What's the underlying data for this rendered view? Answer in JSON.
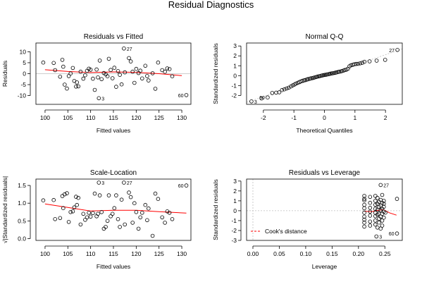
{
  "figure": {
    "title": "Residual Diagnostics"
  },
  "colors": {
    "points": "#000000",
    "smooth": "#ff0000",
    "reference": "#bebebe",
    "frame": "#000000"
  },
  "chart_data": [
    {
      "type": "scatter",
      "title": "Residuals vs Fitted",
      "xlabel": "Fitted values",
      "ylabel": "Residuals",
      "xlim": [
        98,
        132
      ],
      "ylim": [
        -14,
        14
      ],
      "xticks": [
        100,
        105,
        110,
        115,
        120,
        125,
        130
      ],
      "yticks": [
        -10,
        -5,
        0,
        5,
        10
      ],
      "hline": 0,
      "smooth": [
        [
          100,
          1.8
        ],
        [
          105,
          1.0
        ],
        [
          110,
          0.5
        ],
        [
          115,
          0.8
        ],
        [
          120,
          0.6
        ],
        [
          125,
          0.0
        ],
        [
          130,
          -0.9
        ]
      ],
      "annotations": [
        {
          "label": "27",
          "x": 117.3,
          "y": 11.5
        },
        {
          "label": "3",
          "x": 111.8,
          "y": -11.2
        },
        {
          "label": "60",
          "x": 131.0,
          "y": -9.8
        }
      ],
      "points": [
        [
          99.6,
          5.1
        ],
        [
          101.9,
          4.9
        ],
        [
          102.2,
          1.6
        ],
        [
          103.3,
          -1.4
        ],
        [
          103.8,
          6.3
        ],
        [
          104.0,
          3.2
        ],
        [
          104.3,
          -5.0
        ],
        [
          104.8,
          -6.8
        ],
        [
          105.2,
          -1.1
        ],
        [
          105.6,
          0.1
        ],
        [
          106.1,
          2.6
        ],
        [
          106.4,
          -3.3
        ],
        [
          106.8,
          -5.9
        ],
        [
          107.0,
          -4.0
        ],
        [
          107.3,
          -5.8
        ],
        [
          107.8,
          0.9
        ],
        [
          108.4,
          -2.3
        ],
        [
          108.8,
          -0.7
        ],
        [
          109.2,
          1.3
        ],
        [
          109.6,
          2.3
        ],
        [
          110.0,
          1.8
        ],
        [
          110.5,
          -2.3
        ],
        [
          110.9,
          -7.4
        ],
        [
          111.3,
          1.9
        ],
        [
          111.6,
          -1.7
        ],
        [
          112.0,
          6.0
        ],
        [
          112.4,
          -2.5
        ],
        [
          112.9,
          0.3
        ],
        [
          113.3,
          -0.3
        ],
        [
          113.7,
          -1.2
        ],
        [
          114.0,
          6.8
        ],
        [
          114.4,
          1.7
        ],
        [
          114.8,
          -2.1
        ],
        [
          115.2,
          2.7
        ],
        [
          115.6,
          -6.0
        ],
        [
          116.0,
          1.2
        ],
        [
          116.4,
          -0.5
        ],
        [
          116.8,
          -4.9
        ],
        [
          117.3,
          11.5
        ],
        [
          117.5,
          0.6
        ],
        [
          118.4,
          7.1
        ],
        [
          118.8,
          5.6
        ],
        [
          119.2,
          0.9
        ],
        [
          119.6,
          -4.2
        ],
        [
          120.0,
          2.2
        ],
        [
          120.5,
          0.3
        ],
        [
          120.9,
          1.4
        ],
        [
          121.3,
          -2.2
        ],
        [
          122.0,
          3.6
        ],
        [
          122.4,
          -1.1
        ],
        [
          122.7,
          -3.1
        ],
        [
          123.6,
          0.2
        ],
        [
          124.2,
          -6.9
        ],
        [
          124.8,
          5.1
        ],
        [
          125.7,
          1.6
        ],
        [
          126.3,
          0.9
        ],
        [
          126.8,
          2.4
        ],
        [
          127.3,
          2.1
        ],
        [
          127.9,
          -1.2
        ],
        [
          111.8,
          -11.2
        ],
        [
          131.0,
          -9.8
        ]
      ]
    },
    {
      "type": "scatter",
      "title": "Normal Q-Q",
      "xlabel": "Theoretical Quantiles",
      "ylabel": "Standardized residuals",
      "xlim": [
        -2.55,
        2.55
      ],
      "ylim": [
        -2.9,
        3.3
      ],
      "xticks": [
        -2,
        -1,
        0,
        1,
        2
      ],
      "yticks": [
        -2,
        -1,
        0,
        1,
        2,
        3
      ],
      "reference_line": [
        [
          -2.55,
          -2.7
        ],
        [
          2.55,
          2.7
        ]
      ],
      "annotations": [
        {
          "label": "27",
          "x": 2.39,
          "y": 2.6
        },
        {
          "label": "3",
          "x": -2.39,
          "y": -2.6
        },
        {
          "label": "60",
          "x": -1.86,
          "y": -2.2
        }
      ],
      "points": [
        [
          -2.39,
          -2.6
        ],
        [
          -2.06,
          -2.3
        ],
        [
          -1.86,
          -2.2
        ],
        [
          -1.71,
          -1.75
        ],
        [
          -1.58,
          -1.72
        ],
        [
          -1.48,
          -1.68
        ],
        [
          -1.39,
          -1.45
        ],
        [
          -1.31,
          -1.38
        ],
        [
          -1.24,
          -1.3
        ],
        [
          -1.17,
          -1.22
        ],
        [
          -1.1,
          -1.1
        ],
        [
          -1.04,
          -0.98
        ],
        [
          -0.98,
          -0.9
        ],
        [
          -0.93,
          -0.8
        ],
        [
          -0.87,
          -0.72
        ],
        [
          -0.82,
          -0.65
        ],
        [
          -0.77,
          -0.58
        ],
        [
          -0.72,
          -0.52
        ],
        [
          -0.67,
          -0.48
        ],
        [
          -0.63,
          -0.44
        ],
        [
          -0.58,
          -0.4
        ],
        [
          -0.54,
          -0.35
        ],
        [
          -0.49,
          -0.32
        ],
        [
          -0.45,
          -0.28
        ],
        [
          -0.4,
          -0.25
        ],
        [
          -0.36,
          -0.22
        ],
        [
          -0.32,
          -0.18
        ],
        [
          -0.27,
          -0.14
        ],
        [
          -0.23,
          -0.1
        ],
        [
          -0.19,
          -0.07
        ],
        [
          -0.15,
          -0.04
        ],
        [
          -0.1,
          0.0
        ],
        [
          -0.06,
          0.03
        ],
        [
          -0.02,
          0.06
        ],
        [
          0.02,
          0.08
        ],
        [
          0.06,
          0.1
        ],
        [
          0.1,
          0.13
        ],
        [
          0.15,
          0.16
        ],
        [
          0.19,
          0.19
        ],
        [
          0.23,
          0.22
        ],
        [
          0.27,
          0.24
        ],
        [
          0.32,
          0.27
        ],
        [
          0.36,
          0.3
        ],
        [
          0.4,
          0.33
        ],
        [
          0.45,
          0.37
        ],
        [
          0.49,
          0.4
        ],
        [
          0.54,
          0.43
        ],
        [
          0.58,
          0.47
        ],
        [
          0.63,
          0.52
        ],
        [
          0.67,
          0.57
        ],
        [
          0.72,
          0.6
        ],
        [
          0.77,
          0.7
        ],
        [
          0.82,
          0.95
        ],
        [
          0.87,
          1.05
        ],
        [
          0.93,
          1.1
        ],
        [
          0.98,
          1.15
        ],
        [
          1.04,
          1.18
        ],
        [
          1.1,
          1.2
        ],
        [
          1.17,
          1.25
        ],
        [
          1.24,
          1.3
        ],
        [
          1.31,
          1.4
        ],
        [
          1.48,
          1.45
        ],
        [
          1.71,
          1.52
        ],
        [
          1.99,
          1.6
        ],
        [
          2.39,
          2.6
        ]
      ]
    },
    {
      "type": "scatter",
      "title": "Scale-Location",
      "xlabel": "Fitted values",
      "ylabel": "√|Standardized residuals|",
      "xlim": [
        98,
        132
      ],
      "ylim": [
        -0.05,
        1.68
      ],
      "xticks": [
        100,
        105,
        110,
        115,
        120,
        125,
        130
      ],
      "yticks": [
        0.0,
        0.5,
        1.0,
        1.5
      ],
      "smooth": [
        [
          100,
          0.98
        ],
        [
          105,
          0.88
        ],
        [
          110,
          0.78
        ],
        [
          115,
          0.8
        ],
        [
          120,
          0.8
        ],
        [
          125,
          0.76
        ],
        [
          131,
          0.72
        ]
      ],
      "annotations": [
        {
          "label": "3",
          "x": 111.8,
          "y": 1.58
        },
        {
          "label": "27",
          "x": 117.3,
          "y": 1.58
        },
        {
          "label": "60",
          "x": 131.0,
          "y": 1.5
        }
      ],
      "points": [
        [
          99.6,
          1.08
        ],
        [
          101.9,
          1.09
        ],
        [
          102.2,
          0.55
        ],
        [
          103.3,
          0.58
        ],
        [
          103.8,
          1.2
        ],
        [
          104.0,
          0.86
        ],
        [
          104.3,
          1.25
        ],
        [
          104.8,
          1.28
        ],
        [
          105.2,
          0.47
        ],
        [
          105.6,
          0.75
        ],
        [
          106.1,
          0.77
        ],
        [
          106.4,
          0.88
        ],
        [
          106.8,
          1.18
        ],
        [
          107.0,
          0.95
        ],
        [
          107.3,
          1.15
        ],
        [
          107.8,
          0.4
        ],
        [
          108.4,
          0.7
        ],
        [
          108.8,
          0.53
        ],
        [
          109.2,
          0.6
        ],
        [
          109.6,
          0.73
        ],
        [
          110.0,
          0.62
        ],
        [
          110.5,
          0.72
        ],
        [
          110.9,
          1.27
        ],
        [
          111.3,
          0.63
        ],
        [
          111.6,
          0.7
        ],
        [
          112.0,
          1.22
        ],
        [
          112.4,
          0.75
        ],
        [
          112.9,
          0.28
        ],
        [
          113.3,
          0.33
        ],
        [
          113.7,
          0.5
        ],
        [
          114.0,
          1.22
        ],
        [
          114.4,
          0.63
        ],
        [
          114.8,
          0.7
        ],
        [
          115.2,
          0.86
        ],
        [
          115.6,
          1.22
        ],
        [
          116.0,
          0.55
        ],
        [
          116.4,
          0.33
        ],
        [
          116.8,
          1.1
        ],
        [
          117.5,
          0.4
        ],
        [
          118.4,
          1.3
        ],
        [
          118.8,
          1.17
        ],
        [
          119.2,
          0.45
        ],
        [
          119.6,
          1.0
        ],
        [
          120.0,
          0.75
        ],
        [
          120.5,
          0.28
        ],
        [
          120.9,
          0.6
        ],
        [
          121.3,
          0.73
        ],
        [
          122.0,
          0.95
        ],
        [
          122.4,
          0.52
        ],
        [
          122.7,
          0.85
        ],
        [
          123.6,
          0.08
        ],
        [
          124.2,
          1.27
        ],
        [
          124.8,
          1.12
        ],
        [
          125.7,
          0.6
        ],
        [
          126.3,
          0.45
        ],
        [
          126.8,
          0.77
        ],
        [
          127.3,
          0.73
        ],
        [
          127.9,
          0.55
        ],
        [
          111.8,
          1.58
        ],
        [
          117.3,
          1.58
        ],
        [
          131.0,
          1.5
        ]
      ]
    },
    {
      "type": "scatter",
      "title": "Residuals vs Leverage",
      "xlabel": "Leverage",
      "ylabel": "Standardized residuals",
      "xlim": [
        -0.012,
        0.283
      ],
      "ylim": [
        -3.0,
        3.2
      ],
      "xticks": [
        0.0,
        0.05,
        0.1,
        0.15,
        0.2,
        0.25
      ],
      "yticks": [
        -3,
        -2,
        -1,
        0,
        1,
        2,
        3
      ],
      "hline": 0,
      "vline": 0,
      "legend": {
        "label": "Cook's distance",
        "position": "bottom-left"
      },
      "smooth": [
        [
          0.211,
          -0.05
        ],
        [
          0.225,
          -0.1
        ],
        [
          0.238,
          0.05
        ],
        [
          0.248,
          0.1
        ],
        [
          0.258,
          -0.2
        ],
        [
          0.272,
          -0.45
        ]
      ],
      "annotations": [
        {
          "label": "27",
          "x": 0.242,
          "y": 2.6
        },
        {
          "label": "3",
          "x": 0.234,
          "y": -2.6
        },
        {
          "label": "60",
          "x": 0.273,
          "y": -2.3
        }
      ],
      "points": [
        [
          0.211,
          1.5
        ],
        [
          0.211,
          1.2
        ],
        [
          0.211,
          0.6
        ],
        [
          0.211,
          0.25
        ],
        [
          0.211,
          -0.2
        ],
        [
          0.211,
          -0.6
        ],
        [
          0.211,
          -0.9
        ],
        [
          0.211,
          -1.2
        ],
        [
          0.211,
          -1.6
        ],
        [
          0.211,
          1.05
        ],
        [
          0.222,
          1.4
        ],
        [
          0.222,
          0.8
        ],
        [
          0.222,
          0.3
        ],
        [
          0.222,
          -0.1
        ],
        [
          0.222,
          -0.5
        ],
        [
          0.222,
          -1.1
        ],
        [
          0.222,
          -1.5
        ],
        [
          0.232,
          1.5
        ],
        [
          0.232,
          1.0
        ],
        [
          0.232,
          0.6
        ],
        [
          0.232,
          0.2
        ],
        [
          0.232,
          -0.2
        ],
        [
          0.232,
          -0.55
        ],
        [
          0.232,
          -1.0
        ],
        [
          0.232,
          -1.4
        ],
        [
          0.234,
          -2.6
        ],
        [
          0.236,
          1.3
        ],
        [
          0.236,
          0.7
        ],
        [
          0.236,
          0.1
        ],
        [
          0.236,
          -0.4
        ],
        [
          0.236,
          -1.7
        ],
        [
          0.239,
          0.9
        ],
        [
          0.239,
          0.4
        ],
        [
          0.239,
          -0.3
        ],
        [
          0.239,
          -0.8
        ],
        [
          0.239,
          -1.2
        ],
        [
          0.242,
          2.6
        ],
        [
          0.242,
          1.1
        ],
        [
          0.242,
          0.5
        ],
        [
          0.242,
          0.05
        ],
        [
          0.242,
          -0.6
        ],
        [
          0.242,
          -1.8
        ],
        [
          0.245,
          1.6
        ],
        [
          0.245,
          0.8
        ],
        [
          0.245,
          0.2
        ],
        [
          0.245,
          -0.3
        ],
        [
          0.245,
          -1.0
        ],
        [
          0.245,
          -1.5
        ],
        [
          0.248,
          1.0
        ],
        [
          0.248,
          0.7
        ],
        [
          0.248,
          0.4
        ],
        [
          0.248,
          -0.1
        ],
        [
          0.248,
          -0.7
        ],
        [
          0.251,
          -0.2
        ],
        [
          0.273,
          -2.3
        ],
        [
          0.273,
          1.2
        ]
      ]
    }
  ]
}
